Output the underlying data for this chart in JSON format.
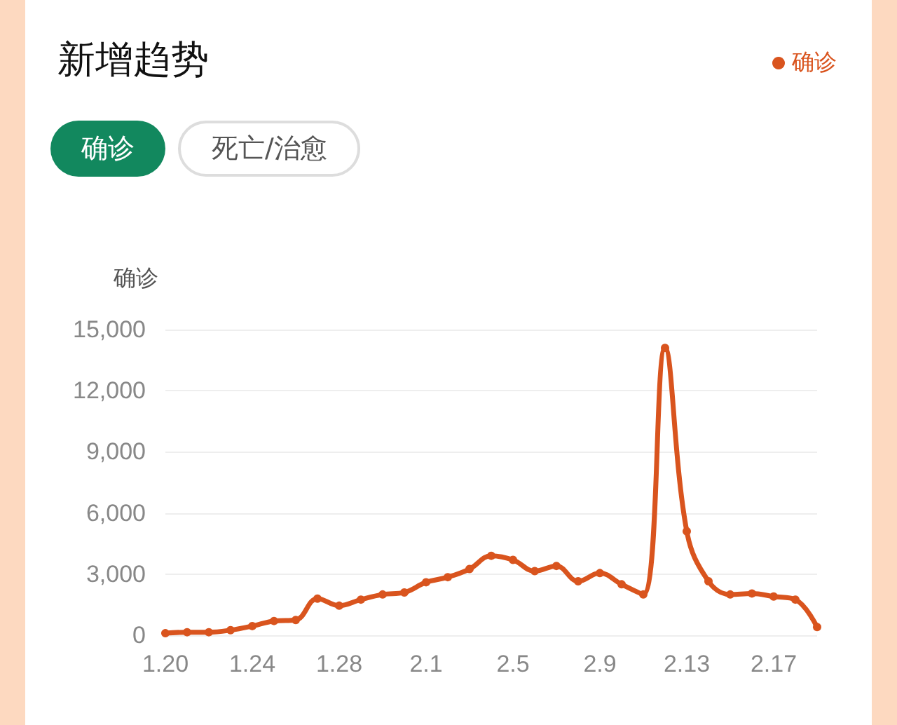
{
  "chart_data": {
    "type": "line",
    "title": "新增趋势",
    "ylabel": "确诊",
    "annotations": [
      "确诊",
      "死亡/治愈"
    ],
    "categories": [
      "1.20",
      null,
      null,
      null,
      "1.24",
      null,
      null,
      null,
      "1.28",
      null,
      null,
      null,
      "2.1",
      null,
      null,
      null,
      "2.5",
      null,
      null,
      null,
      "2.9",
      null,
      null,
      null,
      "2.13",
      null,
      null,
      null,
      "2.17",
      null,
      null
    ],
    "series": [
      {
        "name": "确诊",
        "color": "#d9541e",
        "values": [
          100,
          150,
          150,
          250,
          450,
          700,
          750,
          1800,
          1450,
          1750,
          2000,
          2100,
          2600,
          2850,
          3250,
          3900,
          3700,
          3150,
          3400,
          2650,
          3050,
          2500,
          2000,
          14100,
          5100,
          2650,
          2000,
          2050,
          1900,
          1750,
          400
        ]
      }
    ],
    "ylim": [
      0,
      15000
    ],
    "yticks": [
      0,
      {
        "value": 3000,
        "label": "3,000"
      },
      {
        "value": 6000,
        "label": "6,000"
      },
      {
        "value": 9000,
        "label": "9,000"
      },
      {
        "value": 12000,
        "label": "12,000"
      },
      {
        "value": 15000,
        "label": "15,000"
      }
    ],
    "grid": "y",
    "legend": "top right",
    "marker": "circle",
    "line_style": "solid"
  }
}
